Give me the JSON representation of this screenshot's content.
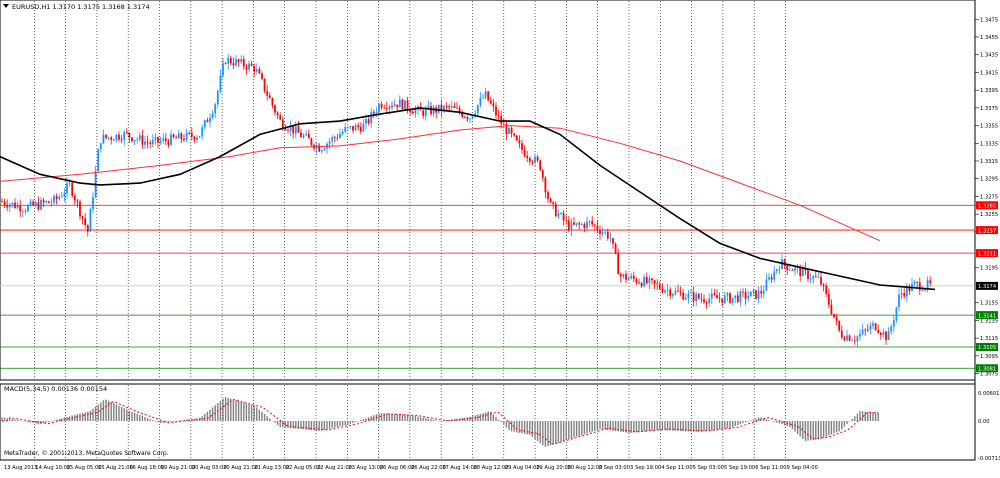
{
  "header": {
    "main_title": "EURUSD,H1  1.3170 1.3175 1.3168 1.3174",
    "indicator_title": "MACD(5,34,5) 0.00136 0.00154"
  },
  "footer": {
    "watermark": "MetaTrader, © 2001-2013, MetaQuotes Software Corp."
  },
  "colors": {
    "background": "#ffffff",
    "bull_candle": "#1e90ff",
    "bear_candle": "#ff0000",
    "ma_fast": "#000000",
    "ma_slow": "#ff3030",
    "support_line": "#008000",
    "resistance_line": "#ff0000",
    "current_price_label": "#000000",
    "macd_hist": "#808080",
    "macd_signal": "#ff0000"
  },
  "price_axis": {
    "labels": [
      "1.3475",
      "1.3455",
      "1.3435",
      "1.3415",
      "1.3395",
      "1.3375",
      "1.3355",
      "1.3335",
      "1.3315",
      "1.3295",
      "1.3275",
      "1.3255",
      "1.3235",
      "1.3195",
      "1.3155",
      "1.3135",
      "1.3115",
      "1.3095",
      "1.3075"
    ],
    "min": 1.307,
    "max": 1.349
  },
  "price_tags": [
    {
      "value": "1.3265",
      "kind": "resistance"
    },
    {
      "value": "1.3237",
      "kind": "resistance"
    },
    {
      "value": "1.3211",
      "kind": "resistance"
    },
    {
      "value": "1.3174",
      "kind": "current"
    },
    {
      "value": "1.3141",
      "kind": "support"
    },
    {
      "value": "1.3105",
      "kind": "support"
    },
    {
      "value": "1.3081",
      "kind": "support"
    }
  ],
  "macd_axis": {
    "labels": [
      "0.00601",
      "0.00",
      "-0.00713"
    ]
  },
  "time_axis": {
    "labels": [
      "13 Aug 2013",
      "14 Aug 10:00",
      "15 Aug 05:00",
      "15 Aug 21:00",
      "16 Aug 18:00",
      "19 Aug 21:00",
      "20 Aug 03:00",
      "20 Aug 21:00",
      "21 Aug 13:00",
      "22 Aug 05:00",
      "22 Aug 21:00",
      "23 Aug 13:00",
      "26 Aug 06:00",
      "26 Aug 22:00",
      "27 Aug 14:00",
      "28 Aug 12:00",
      "29 Aug 04:00",
      "29 Aug 20:00",
      "30 Aug 12:00",
      "2 Sep 03:00",
      "3 Sep 19:00",
      "4 Sep 11:00",
      "5 Sep 03:00",
      "5 Sep 19:00",
      "6 Sep 11:00",
      "9 Sep 04:00"
    ]
  }
}
